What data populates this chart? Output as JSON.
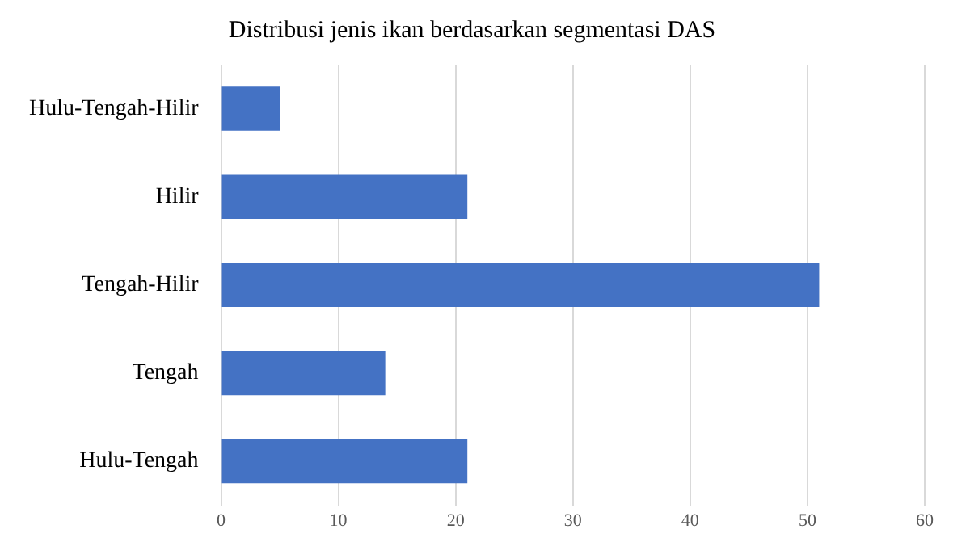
{
  "chart_data": {
    "type": "bar",
    "orientation": "horizontal",
    "title": "Distribusi jenis ikan berdasarkan segmentasi DAS",
    "categories": [
      "Hulu-Tengah-Hilir",
      "Hilir",
      "Tengah-Hilir",
      "Tengah",
      "Hulu-Tengah"
    ],
    "values": [
      5,
      21,
      51,
      14,
      21
    ],
    "color": "#4472c4",
    "xlim": [
      0,
      60
    ],
    "xticks": [
      0,
      10,
      20,
      30,
      40,
      50,
      60
    ],
    "grid": "x",
    "legend": false
  }
}
